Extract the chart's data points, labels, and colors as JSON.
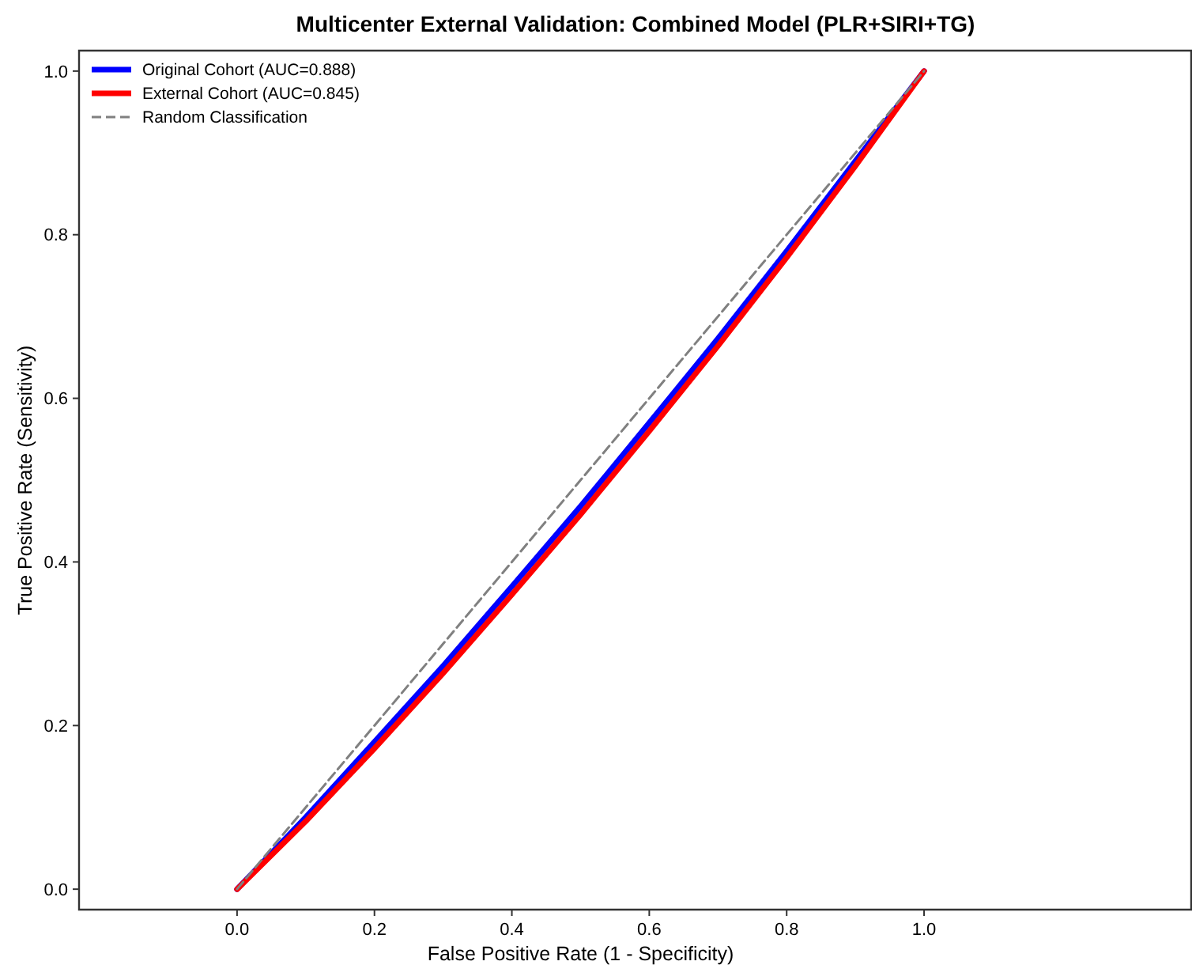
{
  "chart_data": {
    "type": "line",
    "title": "Multicenter External Validation: Combined Model (PLR+SIRI+TG)",
    "xlabel": "False Positive Rate (1 - Specificity)",
    "ylabel": "True Positive Rate (Sensitivity)",
    "xlim": [
      -0.23,
      1.39
    ],
    "ylim": [
      -0.025,
      1.025
    ],
    "xticks": [
      {
        "value": 0,
        "label": "0.0"
      },
      {
        "value": 0.2,
        "label": "0.2"
      },
      {
        "value": 0.4,
        "label": "0.4"
      },
      {
        "value": 0.6,
        "label": "0.6"
      },
      {
        "value": 0.8,
        "label": "0.8"
      },
      {
        "value": 1,
        "label": "1.0"
      }
    ],
    "yticks": [
      {
        "value": 0,
        "label": "0.0"
      },
      {
        "value": 0.2,
        "label": "0.2"
      },
      {
        "value": 0.4,
        "label": "0.4"
      },
      {
        "value": 0.6,
        "label": "0.6"
      },
      {
        "value": 0.8,
        "label": "0.8"
      },
      {
        "value": 1,
        "label": "1.0"
      }
    ],
    "grid": false,
    "legend": "top left",
    "series": [
      {
        "name": "Original Cohort (AUC=0.888)",
        "color": "#0000ff",
        "x": [
          0,
          0.1,
          0.2,
          0.3,
          0.4,
          0.5,
          0.6,
          0.7,
          0.8,
          0.9,
          1
        ],
        "values": [
          0,
          0.088,
          0.18,
          0.273,
          0.37,
          0.468,
          0.57,
          0.673,
          0.78,
          0.89,
          1
        ]
      },
      {
        "name": "External Cohort (AUC=0.845)",
        "color": "#ff0000",
        "x": [
          0,
          0.1,
          0.2,
          0.3,
          0.4,
          0.5,
          0.6,
          0.7,
          0.8,
          0.9,
          1
        ],
        "values": [
          0,
          0.083,
          0.172,
          0.264,
          0.36,
          0.458,
          0.56,
          0.664,
          0.772,
          0.884,
          1
        ]
      },
      {
        "name": "Random Classification",
        "color": "#808080",
        "line_style": "dashed",
        "x": [
          0,
          1
        ],
        "values": [
          0,
          1
        ]
      }
    ]
  }
}
